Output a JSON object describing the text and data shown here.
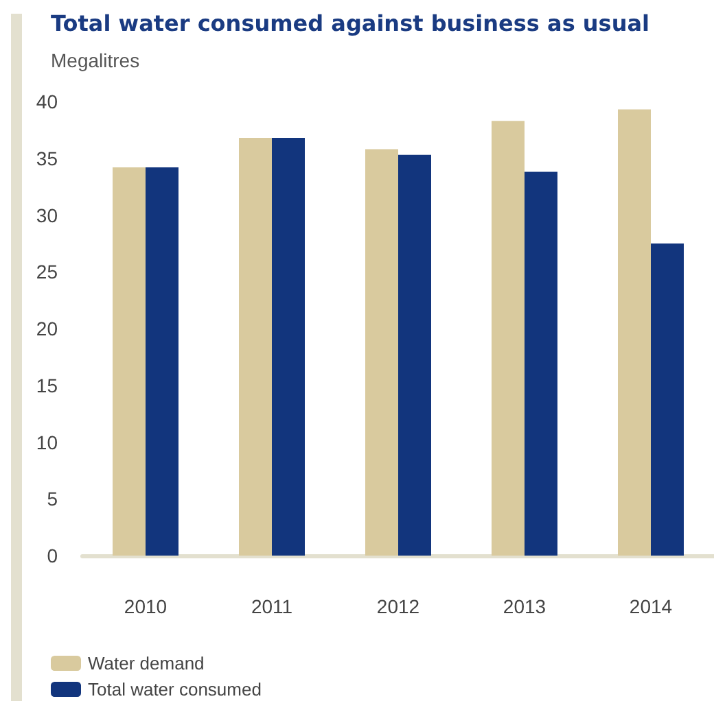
{
  "chart_data": {
    "type": "bar",
    "title": "Total water consumed against business as usual",
    "ylabel": "Megalitres",
    "categories": [
      "2010",
      "2011",
      "2012",
      "2013",
      "2014"
    ],
    "series": [
      {
        "name": "Water demand",
        "color": "#d9ca9e",
        "values": [
          34.2,
          36.8,
          35.8,
          38.3,
          39.3
        ]
      },
      {
        "name": "Total water consumed",
        "color": "#12357d",
        "values": [
          34.2,
          36.8,
          35.3,
          33.8,
          27.5
        ]
      }
    ],
    "ylim": [
      0,
      40
    ],
    "yticks": [
      0,
      5,
      10,
      15,
      20,
      25,
      30,
      35,
      40
    ],
    "grid": false,
    "legend": "bottom left"
  }
}
